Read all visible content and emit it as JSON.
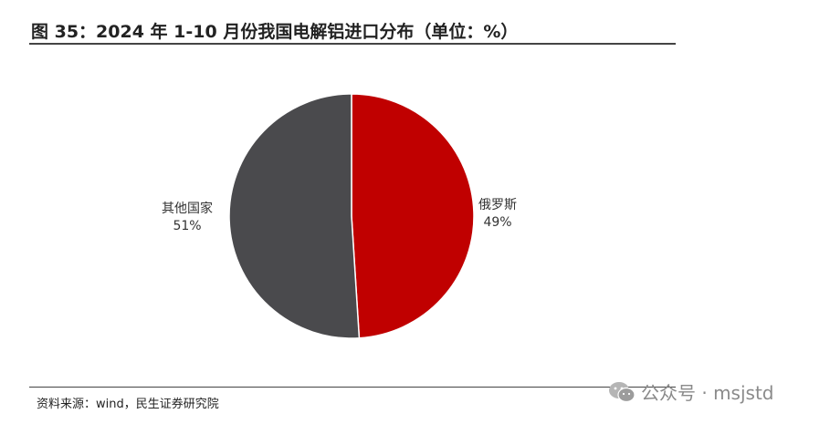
{
  "title": "图 35：2024 年 1-10 月份我国电解铝进口分布（单位：%）",
  "source": "资料来源：wind，民生证券研究院",
  "watermark": "公众号 · msjstd",
  "chart_data": {
    "type": "pie",
    "unit": "%",
    "slices": [
      {
        "label": "俄罗斯",
        "value": 49,
        "value_text": "49%",
        "color": "#C00000"
      },
      {
        "label": "其他国家",
        "value": 51,
        "value_text": "51%",
        "color": "#4A4A4D"
      }
    ],
    "start": "12 o'clock",
    "direction": "clockwise",
    "legend": "none",
    "slice_border_color": "#FFFFFF"
  }
}
